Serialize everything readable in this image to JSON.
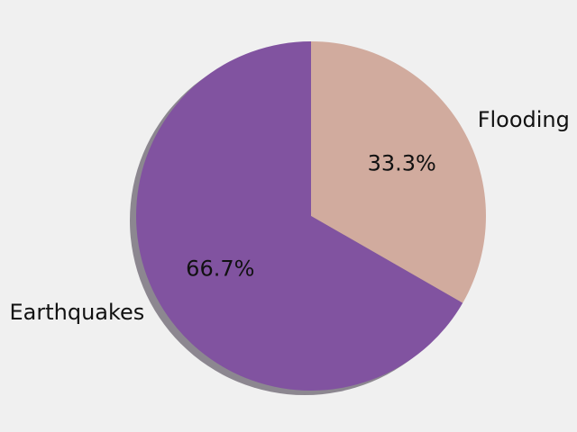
{
  "chart_data": {
    "type": "pie",
    "categories": [
      "Flooding",
      "Earthquakes"
    ],
    "values": [
      33.3,
      66.7
    ],
    "percent_labels": [
      "33.3%",
      "66.7%"
    ],
    "colors": [
      "#d1ab9e",
      "#8153a0"
    ],
    "shadow": true,
    "background_color": "#f0f0f0",
    "title": "",
    "legend": "none"
  }
}
